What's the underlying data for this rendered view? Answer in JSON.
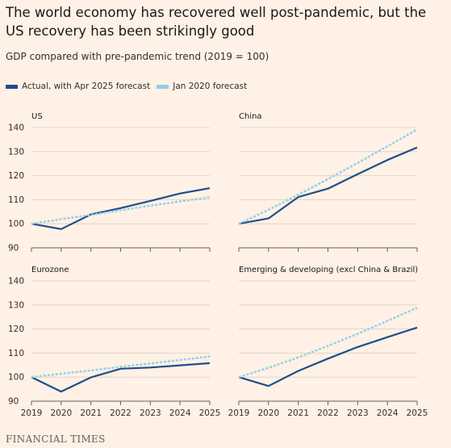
{
  "header": {
    "title": "The world economy has recovered well post-pandemic, but the US recovery has been strikingly good",
    "subtitle": "GDP compared with pre-pandemic trend (2019 = 100)"
  },
  "legend": {
    "items": [
      {
        "label": "Actual, with Apr 2025 forecast",
        "color": "#1f4e8a"
      },
      {
        "label": "Jan 2020 forecast",
        "color": "#8ed0ea"
      }
    ]
  },
  "source": "FINANCIAL TIMES",
  "chart_data": [
    {
      "type": "line",
      "title": "US",
      "x": [
        2019,
        2020,
        2021,
        2022,
        2023,
        2024,
        2025
      ],
      "ylim": [
        90,
        140
      ],
      "yticks": [
        90,
        100,
        110,
        120,
        130,
        140
      ],
      "series": [
        {
          "name": "Actual, with Apr 2025 forecast",
          "color": "#1f4e8a",
          "style": "solid",
          "values": [
            100,
            97.8,
            103.9,
            106.5,
            109.5,
            112.6,
            114.8
          ]
        },
        {
          "name": "Jan 2020 forecast",
          "color": "#8ed0ea",
          "style": "dotted",
          "values": [
            100,
            101.9,
            103.7,
            105.6,
            107.5,
            109.3,
            111.0
          ]
        }
      ]
    },
    {
      "type": "line",
      "title": "China",
      "x": [
        2019,
        2020,
        2021,
        2022,
        2023,
        2024,
        2025
      ],
      "ylim": [
        90,
        140
      ],
      "yticks": [
        90,
        100,
        110,
        120,
        130,
        140
      ],
      "series": [
        {
          "name": "Actual, with Apr 2025 forecast",
          "color": "#1f4e8a",
          "style": "solid",
          "values": [
            100,
            102.2,
            111.1,
            114.6,
            120.6,
            126.5,
            131.7
          ]
        },
        {
          "name": "Jan 2020 forecast",
          "color": "#8ed0ea",
          "style": "dotted",
          "values": [
            100,
            105.8,
            112.1,
            118.6,
            125.3,
            132.2,
            139.2
          ]
        }
      ]
    },
    {
      "type": "line",
      "title": "Eurozone",
      "x": [
        2019,
        2020,
        2021,
        2022,
        2023,
        2024,
        2025
      ],
      "ylim": [
        90,
        140
      ],
      "yticks": [
        90,
        100,
        110,
        120,
        130,
        140
      ],
      "series": [
        {
          "name": "Actual, with Apr 2025 forecast",
          "color": "#1f4e8a",
          "style": "solid",
          "values": [
            100,
            94.0,
            99.9,
            103.5,
            104.0,
            104.9,
            105.8
          ]
        },
        {
          "name": "Jan 2020 forecast",
          "color": "#8ed0ea",
          "style": "dotted",
          "values": [
            100,
            101.4,
            102.8,
            104.3,
            105.7,
            107.1,
            108.6
          ]
        }
      ]
    },
    {
      "type": "line",
      "title": "Emerging & developing (excl China & Brazil)",
      "x": [
        2019,
        2020,
        2021,
        2022,
        2023,
        2024,
        2025
      ],
      "ylim": [
        90,
        140
      ],
      "yticks": [
        90,
        100,
        110,
        120,
        130,
        140
      ],
      "series": [
        {
          "name": "Actual, with Apr 2025 forecast",
          "color": "#1f4e8a",
          "style": "solid",
          "values": [
            100,
            96.3,
            102.6,
            107.7,
            112.5,
            116.6,
            120.6
          ]
        },
        {
          "name": "Jan 2020 forecast",
          "color": "#8ed0ea",
          "style": "dotted",
          "values": [
            100,
            103.9,
            108.2,
            113.0,
            118.0,
            123.4,
            128.8
          ]
        }
      ]
    }
  ]
}
